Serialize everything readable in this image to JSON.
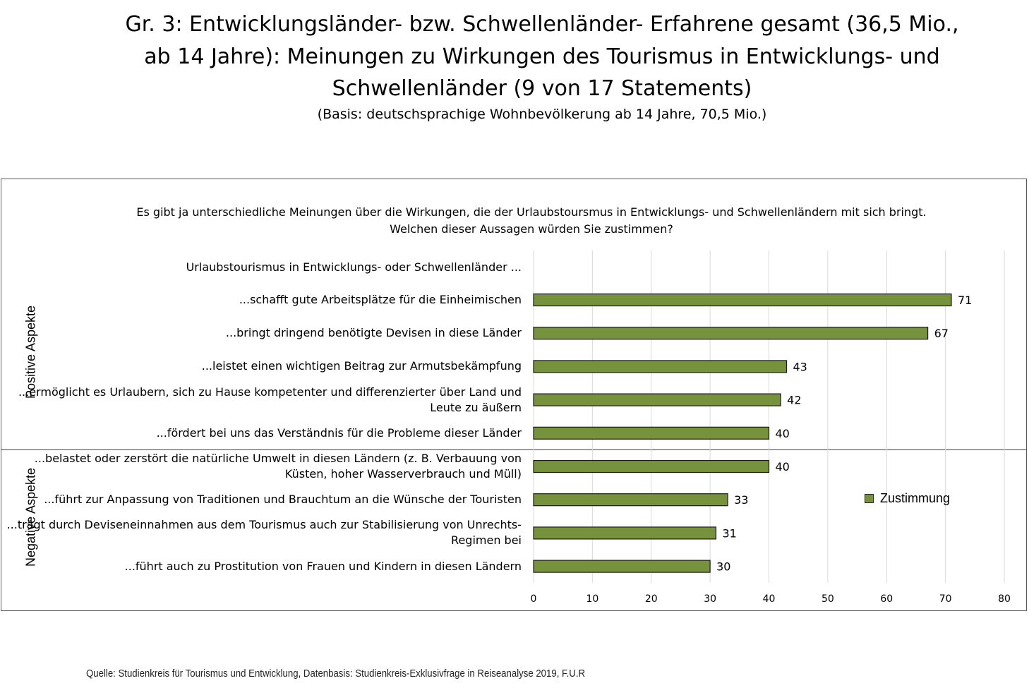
{
  "title_lines": [
    "Gr. 3: Entwicklungsländer- bzw. Schwellenländer- Erfahrene gesamt (36,5 Mio.,",
    "ab 14 Jahre): Meinungen zu Wirkungen des Tourismus in Entwicklungs- und",
    "Schwellenländer (9 von 17 Statements)"
  ],
  "subtitle": "(Basis: deutschsprachige Wohnbevölkerung ab 14 Jahre, 70,5 Mio.)",
  "question_lines": [
    "Es gibt ja unterschiedliche Meinungen über die Wirkungen, die der Urlaubstoursmus in Entwicklungs- und Schwellenländern mit sich bringt.",
    "Welchen dieser Aussagen würden Sie zustimmen?"
  ],
  "source": "Quelle: Studienkreis für Tourismus und Entwicklung, Datenbasis: Studienkreis-Exklusivfrage in Reiseanalyse 2019, F.U.R",
  "colors": {
    "bar": "#76923c",
    "bar_border": "#1a1a1a",
    "grid": "#d9d9d9"
  },
  "chart_data": {
    "type": "bar",
    "orientation": "horizontal",
    "header_category": "Urlaubstourismus in Entwicklungs- oder Schwellenländer ...",
    "categories": [
      "...schafft gute Arbeitsplätze für die Einheimischen",
      "...bringt dringend benötigte Devisen in diese Länder",
      "...leistet einen wichtigen Beitrag zur Armutsbekämpfung",
      "...ermöglicht es Urlaubern, sich zu Hause kompetenter und differenzierter über Land und\nLeute zu äußern",
      "...fördert bei uns das Verständnis für die Probleme dieser Länder",
      "...belastet oder zerstört die natürliche Umwelt in diesen Ländern (z. B. Verbauung von\nKüsten, hoher Wasserverbrauch und Müll)",
      "...führt zur Anpassung von Traditionen und Brauchtum an die Wünsche der Touristen",
      "...trägt durch Deviseneinnahmen aus dem Tourismus auch zur Stabilisierung von Unrechts-\nRegimen bei",
      "...führt auch zu Prostitution von Frauen und Kindern in diesen Ländern"
    ],
    "groups": [
      {
        "label": "Positive Aspekte",
        "count": 5
      },
      {
        "label": "Negative Aspekte",
        "count": 4
      }
    ],
    "series": [
      {
        "name": "Zustimmung",
        "values": [
          71,
          67,
          43,
          42,
          40,
          40,
          33,
          31,
          30
        ]
      }
    ],
    "xlim": [
      0,
      80
    ],
    "xticks": [
      0,
      10,
      20,
      30,
      40,
      50,
      60,
      70,
      80
    ],
    "grid": true,
    "legend": "right"
  }
}
